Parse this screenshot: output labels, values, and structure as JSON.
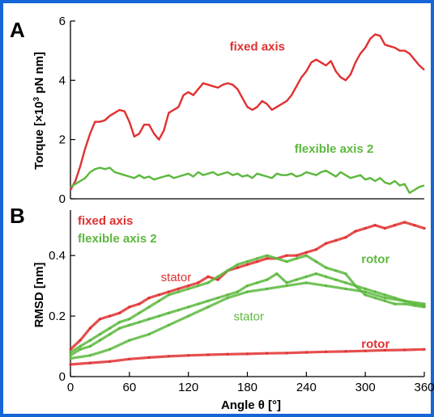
{
  "colors": {
    "fixed": "#e03030",
    "flexible": "#5cb83e",
    "frame": "#1565d8"
  },
  "chart_data": [
    {
      "panel_label": "A",
      "type": "line",
      "xlabel": "",
      "ylabel": "Torque [×10³ pN nm]",
      "ylabel_base": "Torque [×10",
      "ylabel_exp": "3",
      "ylabel_tail": " pN nm]",
      "xlim": [
        0,
        360
      ],
      "ylim": [
        0,
        6
      ],
      "yticks": [
        0,
        2,
        4,
        6
      ],
      "yticklabels": [
        "0",
        "2",
        "4",
        "6"
      ],
      "grid": false,
      "series": [
        {
          "name": "fixed axis",
          "color": "#e03030",
          "x": [
            0,
            5,
            10,
            15,
            20,
            25,
            30,
            35,
            40,
            45,
            50,
            55,
            60,
            65,
            70,
            75,
            80,
            85,
            90,
            95,
            100,
            105,
            110,
            115,
            120,
            125,
            130,
            135,
            140,
            145,
            150,
            155,
            160,
            165,
            170,
            175,
            180,
            185,
            190,
            195,
            200,
            205,
            210,
            215,
            220,
            225,
            230,
            235,
            240,
            245,
            250,
            255,
            260,
            265,
            270,
            275,
            280,
            285,
            290,
            295,
            300,
            305,
            310,
            315,
            320,
            325,
            330,
            335,
            340,
            345,
            350,
            355,
            360
          ],
          "y": [
            0.3,
            0.6,
            1.1,
            1.7,
            2.2,
            2.6,
            2.6,
            2.65,
            2.8,
            2.9,
            3.0,
            2.95,
            2.6,
            2.1,
            2.2,
            2.5,
            2.5,
            2.2,
            2.0,
            2.3,
            2.9,
            3.0,
            3.1,
            3.5,
            3.6,
            3.5,
            3.7,
            3.9,
            3.85,
            3.8,
            3.75,
            3.85,
            3.9,
            3.85,
            3.7,
            3.4,
            3.1,
            3.0,
            3.1,
            3.3,
            3.2,
            3.0,
            3.1,
            3.2,
            3.3,
            3.5,
            3.8,
            4.1,
            4.3,
            4.6,
            4.7,
            4.6,
            4.5,
            4.65,
            4.3,
            4.1,
            4.0,
            4.2,
            4.6,
            4.9,
            5.1,
            5.4,
            5.55,
            5.5,
            5.2,
            5.15,
            5.1,
            5.0,
            5.0,
            4.9,
            4.7,
            4.5,
            4.35
          ]
        },
        {
          "name": "flexible axis 2",
          "color": "#5cb83e",
          "x": [
            0,
            5,
            10,
            15,
            20,
            25,
            30,
            35,
            40,
            45,
            50,
            55,
            60,
            65,
            70,
            75,
            80,
            85,
            90,
            95,
            100,
            105,
            110,
            115,
            120,
            125,
            130,
            135,
            140,
            145,
            150,
            155,
            160,
            165,
            170,
            175,
            180,
            185,
            190,
            195,
            200,
            205,
            210,
            215,
            220,
            225,
            230,
            235,
            240,
            245,
            250,
            255,
            260,
            265,
            270,
            275,
            280,
            285,
            290,
            295,
            300,
            305,
            310,
            315,
            320,
            325,
            330,
            335,
            340,
            345,
            350,
            355,
            360
          ],
          "y": [
            0.4,
            0.5,
            0.6,
            0.7,
            0.9,
            1.0,
            1.05,
            1.0,
            1.05,
            0.9,
            0.85,
            0.8,
            0.75,
            0.7,
            0.8,
            0.7,
            0.75,
            0.65,
            0.7,
            0.75,
            0.8,
            0.7,
            0.75,
            0.8,
            0.85,
            0.75,
            0.9,
            0.8,
            0.85,
            0.9,
            0.8,
            0.85,
            0.9,
            0.8,
            0.85,
            0.75,
            0.8,
            0.7,
            0.85,
            0.8,
            0.75,
            0.7,
            0.85,
            0.8,
            0.8,
            0.85,
            0.75,
            0.8,
            0.9,
            0.85,
            0.8,
            0.9,
            0.95,
            0.85,
            0.75,
            0.9,
            0.8,
            0.7,
            0.75,
            0.8,
            0.65,
            0.7,
            0.6,
            0.7,
            0.55,
            0.5,
            0.6,
            0.45,
            0.5,
            0.2,
            0.3,
            0.4,
            0.45
          ]
        }
      ],
      "annotations": [
        {
          "text": "fixed axis",
          "color": "#e03030",
          "x": 162,
          "y": 5.0,
          "bold": true
        },
        {
          "text": "flexible axis 2",
          "color": "#5cb83e",
          "x": 228,
          "y": 1.55,
          "bold": true
        }
      ]
    },
    {
      "panel_label": "B",
      "type": "scatter",
      "xlabel": "Angle θ [°]",
      "ylabel": "RMSD [nm]",
      "xlim": [
        0,
        360
      ],
      "ylim": [
        0,
        0.55
      ],
      "xticks": [
        0,
        60,
        120,
        180,
        240,
        300,
        360
      ],
      "xticklabels": [
        "0",
        "60",
        "120",
        "180",
        "240",
        "300",
        "360"
      ],
      "yticks": [
        0,
        0.2,
        0.4
      ],
      "yticklabels": [
        "0",
        "0.2",
        "0.4"
      ],
      "grid": false,
      "legend": {
        "placement": "top-left",
        "entries": [
          {
            "name": "fixed axis",
            "color": "#e03030"
          },
          {
            "name": "flexible axis 2",
            "color": "#5cb83e"
          }
        ]
      },
      "series": [
        {
          "name": "fixed axis stator",
          "color": "#e03030",
          "x": [
            0,
            10,
            20,
            30,
            40,
            50,
            60,
            70,
            80,
            90,
            100,
            110,
            120,
            130,
            140,
            150,
            160,
            170,
            180,
            190,
            200,
            210,
            220,
            230,
            240,
            250,
            260,
            270,
            280,
            290,
            300,
            310,
            320,
            330,
            340,
            350,
            360
          ],
          "y": [
            0.09,
            0.12,
            0.16,
            0.19,
            0.2,
            0.21,
            0.23,
            0.24,
            0.26,
            0.27,
            0.28,
            0.29,
            0.3,
            0.31,
            0.33,
            0.32,
            0.35,
            0.36,
            0.37,
            0.38,
            0.39,
            0.39,
            0.4,
            0.4,
            0.41,
            0.42,
            0.44,
            0.45,
            0.46,
            0.48,
            0.49,
            0.5,
            0.49,
            0.5,
            0.51,
            0.5,
            0.49
          ]
        },
        {
          "name": "fixed axis rotor",
          "color": "#e03030",
          "x": [
            0,
            20,
            40,
            60,
            80,
            100,
            120,
            140,
            160,
            180,
            200,
            220,
            240,
            260,
            280,
            300,
            320,
            340,
            360
          ],
          "y": [
            0.04,
            0.045,
            0.05,
            0.058,
            0.063,
            0.067,
            0.07,
            0.072,
            0.074,
            0.075,
            0.077,
            0.078,
            0.08,
            0.082,
            0.083,
            0.085,
            0.087,
            0.088,
            0.09
          ]
        },
        {
          "name": "flexible axis 2 rotor",
          "color": "#5cb83e",
          "x": [
            0,
            10,
            20,
            30,
            40,
            50,
            60,
            70,
            80,
            90,
            100,
            110,
            120,
            130,
            140,
            150,
            160,
            170,
            180,
            190,
            200,
            210,
            220,
            230,
            240,
            250,
            260,
            270,
            280,
            290,
            300,
            310,
            320,
            330,
            340,
            350,
            360
          ],
          "y": [
            0.08,
            0.1,
            0.12,
            0.14,
            0.16,
            0.18,
            0.19,
            0.21,
            0.23,
            0.25,
            0.27,
            0.28,
            0.29,
            0.3,
            0.31,
            0.33,
            0.35,
            0.37,
            0.38,
            0.39,
            0.4,
            0.39,
            0.38,
            0.39,
            0.4,
            0.38,
            0.36,
            0.35,
            0.34,
            0.3,
            0.27,
            0.26,
            0.25,
            0.24,
            0.24,
            0.235,
            0.23
          ]
        },
        {
          "name": "flexible axis 2 stator",
          "color": "#5cb83e",
          "x": [
            0,
            10,
            20,
            30,
            40,
            50,
            60,
            70,
            80,
            90,
            100,
            110,
            120,
            130,
            140,
            150,
            160,
            170,
            180,
            190,
            200,
            210,
            220,
            230,
            240,
            250,
            260,
            270,
            280,
            290,
            300,
            310,
            320,
            330,
            340,
            350,
            360
          ],
          "y": [
            0.07,
            0.09,
            0.1,
            0.12,
            0.14,
            0.16,
            0.17,
            0.18,
            0.19,
            0.2,
            0.21,
            0.22,
            0.23,
            0.24,
            0.25,
            0.26,
            0.27,
            0.28,
            0.3,
            0.31,
            0.32,
            0.34,
            0.31,
            0.32,
            0.33,
            0.34,
            0.33,
            0.32,
            0.31,
            0.3,
            0.29,
            0.28,
            0.27,
            0.26,
            0.25,
            0.24,
            0.235
          ]
        },
        {
          "name": "flexible axis 2 lower",
          "color": "#5cb83e",
          "x": [
            0,
            20,
            40,
            60,
            80,
            100,
            120,
            140,
            160,
            180,
            200,
            220,
            240,
            260,
            280,
            300,
            320,
            340,
            360
          ],
          "y": [
            0.06,
            0.07,
            0.09,
            0.12,
            0.14,
            0.17,
            0.2,
            0.23,
            0.26,
            0.28,
            0.29,
            0.3,
            0.31,
            0.3,
            0.29,
            0.28,
            0.26,
            0.25,
            0.24
          ]
        }
      ],
      "annotations": [
        {
          "text": "stator",
          "color": "#e03030",
          "x": 92,
          "y": 0.315,
          "bold": false
        },
        {
          "text": "stator",
          "color": "#5cb83e",
          "x": 166,
          "y": 0.185,
          "bold": false
        },
        {
          "text": "rotor",
          "color": "#5cb83e",
          "x": 296,
          "y": 0.375,
          "bold": true
        },
        {
          "text": "rotor",
          "color": "#e03030",
          "x": 296,
          "y": 0.095,
          "bold": true
        }
      ]
    }
  ]
}
